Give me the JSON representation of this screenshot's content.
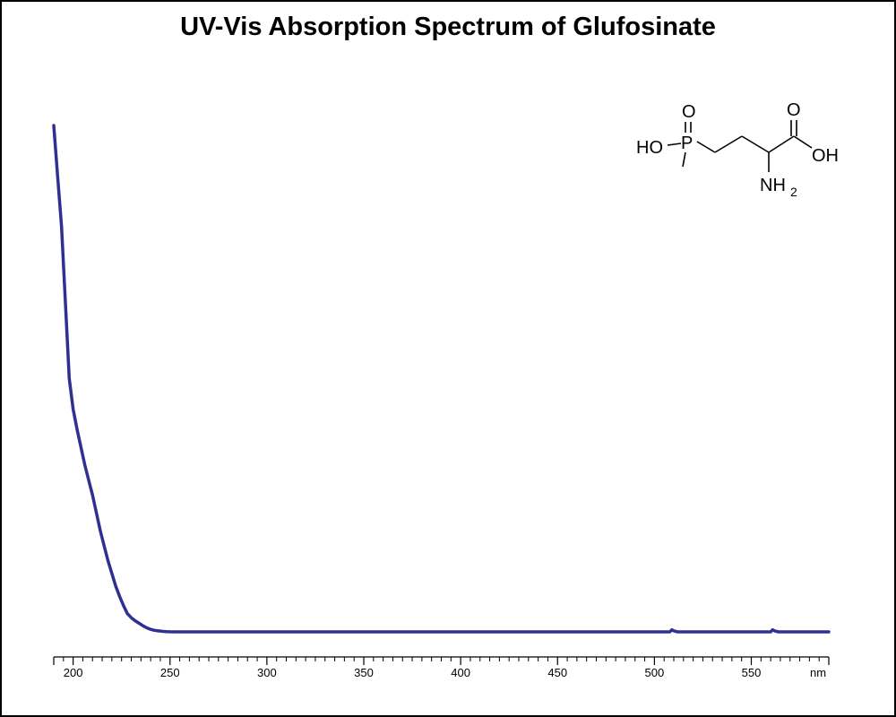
{
  "chart_data": {
    "type": "line",
    "title": "UV-Vis Absorption Spectrum of Glufosinate",
    "xlabel": "",
    "ylabel": "",
    "x_unit_label": "nm",
    "xlim": [
      190,
      590
    ],
    "ylim": [
      0,
      1.0
    ],
    "x_ticks_major": [
      200,
      250,
      300,
      350,
      400,
      450,
      500,
      550
    ],
    "x_tick_labels": [
      "200",
      "250",
      "300",
      "350",
      "400",
      "450",
      "500",
      "550"
    ],
    "x_minor_step": 5,
    "grid": false,
    "legend": "none",
    "series": [
      {
        "color": "#2e3192",
        "x": [
          190,
          192,
          194,
          196,
          198,
          200,
          202,
          204,
          206,
          208,
          210,
          212,
          214,
          216,
          218,
          220,
          222,
          224,
          226,
          228,
          230,
          232,
          234,
          236,
          238,
          240,
          242,
          244,
          246,
          248,
          250,
          252,
          260,
          300,
          400,
          500,
          508,
          509,
          510,
          512,
          520,
          550,
          560,
          561,
          562,
          564,
          580,
          590
        ],
        "y": [
          1.0,
          0.9,
          0.8,
          0.65,
          0.5,
          0.44,
          0.4,
          0.365,
          0.33,
          0.3,
          0.27,
          0.235,
          0.2,
          0.17,
          0.14,
          0.115,
          0.09,
          0.07,
          0.052,
          0.036,
          0.028,
          0.022,
          0.017,
          0.012,
          0.008,
          0.005,
          0.003,
          0.002,
          0.001,
          0.0005,
          0.0002,
          0,
          0,
          0,
          0,
          0,
          0,
          0.004,
          0.002,
          0,
          0,
          0,
          0,
          0.004,
          0.002,
          0,
          0,
          0
        ]
      }
    ]
  },
  "molecule": {
    "atom_labels": [
      "O",
      "P",
      "HO",
      "O",
      "OH",
      "NH",
      "2"
    ]
  },
  "colors": {
    "line": "#2e3192",
    "axis": "#000000",
    "border": "#000000",
    "background": "#ffffff"
  }
}
